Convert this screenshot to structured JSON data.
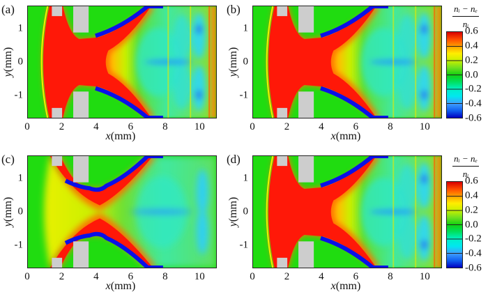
{
  "chart_data": {
    "type": "heatmap",
    "quantity_label": {
      "numerator": "nᵢ − nₑ",
      "denominator": "nᵢ"
    },
    "xlabel": {
      "var": "x",
      "unit": "(mm)"
    },
    "ylabel": {
      "var": "y",
      "unit": "(mm)"
    },
    "xlim": [
      0,
      11
    ],
    "ylim": [
      -1.7,
      1.7
    ],
    "xticks": [
      "0",
      "2",
      "4",
      "6",
      "8",
      "10"
    ],
    "xtick_values": [
      0,
      2,
      4,
      6,
      8,
      10
    ],
    "yticks": [
      "1",
      "0",
      "-1"
    ],
    "ytick_values": [
      1,
      0,
      -1
    ],
    "colorbar": {
      "range": [
        -0.6,
        0.6
      ],
      "ticks": [
        "0.6",
        "0.4",
        "0.2",
        "0.0",
        "-0.2",
        "-0.4",
        "-0.6"
      ],
      "tick_values": [
        0.6,
        0.4,
        0.2,
        0.0,
        -0.2,
        -0.4,
        -0.6
      ],
      "colormap": [
        "#0000c0",
        "#1060f0",
        "#40a0ff",
        "#00e8f0",
        "#00f0c8",
        "#00e060",
        "#10d010",
        "#70e020",
        "#c8f000",
        "#ffee00",
        "#ffa000",
        "#ff4a00",
        "#d80000"
      ]
    },
    "panels": [
      {
        "label": "(a)",
        "variant": "plume"
      },
      {
        "label": "(b)",
        "variant": "plume"
      },
      {
        "label": "(c)",
        "variant": "cross"
      },
      {
        "label": "(d)",
        "variant": "plume"
      }
    ]
  }
}
